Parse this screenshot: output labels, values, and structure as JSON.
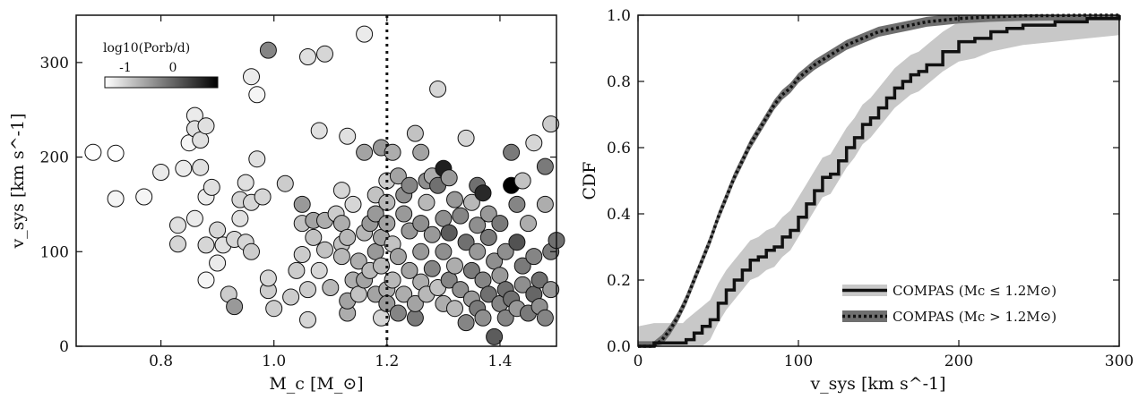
{
  "chart_data": [
    {
      "type": "scatter",
      "xlabel": "M_c [M_⊙]",
      "ylabel": "v_sys [km s^-1]",
      "xlim": [
        0.65,
        1.5
      ],
      "ylim": [
        0,
        350
      ],
      "xticks": [
        0.8,
        1.0,
        1.2,
        1.4
      ],
      "yticks": [
        0,
        100,
        200,
        300
      ],
      "xtick_labels": [
        "0.8",
        "1.0",
        "1.2",
        "1.4"
      ],
      "ytick_labels": [
        "0",
        "100",
        "200",
        "300"
      ],
      "vline_x": 1.2,
      "colorbar": {
        "label_text": "log10(Porb/d)",
        "range": [
          -1.6,
          0.9
        ],
        "ticks": [
          -1,
          0
        ],
        "tick_labels": [
          "-1",
          "0"
        ],
        "colors": [
          "#ffffff",
          "#000000"
        ]
      },
      "points": [
        [
          0.68,
          205,
          -1.6
        ],
        [
          0.72,
          204,
          -1.6
        ],
        [
          0.72,
          156,
          -1.5
        ],
        [
          0.77,
          158,
          -1.5
        ],
        [
          0.8,
          184,
          -1.4
        ],
        [
          0.83,
          128,
          -1.3
        ],
        [
          0.83,
          108,
          -1.2
        ],
        [
          0.84,
          188,
          -1.4
        ],
        [
          0.85,
          215,
          -1.5
        ],
        [
          0.86,
          244,
          -1.4
        ],
        [
          0.86,
          230,
          -1.3
        ],
        [
          0.87,
          218,
          -1.3
        ],
        [
          0.88,
          233,
          -1.3
        ],
        [
          0.87,
          189,
          -1.3
        ],
        [
          0.86,
          135,
          -1.4
        ],
        [
          0.88,
          158,
          -1.4
        ],
        [
          0.89,
          168,
          -1.3
        ],
        [
          0.88,
          107,
          -1.2
        ],
        [
          0.9,
          123,
          -1.2
        ],
        [
          0.88,
          70,
          -1.5
        ],
        [
          0.9,
          88,
          -1.4
        ],
        [
          0.91,
          107,
          -1.3
        ],
        [
          0.92,
          55,
          -1.1
        ],
        [
          0.93,
          42,
          -0.6
        ],
        [
          0.93,
          113,
          -1.2
        ],
        [
          0.94,
          135,
          -1.3
        ],
        [
          0.94,
          155,
          -1.2
        ],
        [
          0.95,
          173,
          -1.3
        ],
        [
          0.96,
          152,
          -1.2
        ],
        [
          0.96,
          285,
          -1.4
        ],
        [
          0.97,
          266,
          -1.5
        ],
        [
          0.97,
          198,
          -1.3
        ],
        [
          0.95,
          110,
          -1.2
        ],
        [
          0.96,
          100,
          -1.1
        ],
        [
          0.98,
          158,
          -1.2
        ],
        [
          0.99,
          59,
          -1.1
        ],
        [
          0.99,
          72,
          -1.2
        ],
        [
          1.0,
          40,
          -1.1
        ],
        [
          0.99,
          313,
          -0.4
        ],
        [
          1.02,
          172,
          -1.1
        ],
        [
          1.03,
          52,
          -1.1
        ],
        [
          1.04,
          80,
          -1.1
        ],
        [
          1.05,
          150,
          -0.6
        ],
        [
          1.05,
          130,
          -1.0
        ],
        [
          1.05,
          97,
          -1.1
        ],
        [
          1.06,
          28,
          -1.2
        ],
        [
          1.06,
          60,
          -1.1
        ],
        [
          1.06,
          306,
          -1.3
        ],
        [
          1.07,
          133,
          -0.7
        ],
        [
          1.07,
          115,
          -1.0
        ],
        [
          1.08,
          80,
          -1.2
        ],
        [
          1.08,
          228,
          -1.3
        ],
        [
          1.09,
          309,
          -1.2
        ],
        [
          1.09,
          133,
          -0.8
        ],
        [
          1.09,
          102,
          -1.0
        ],
        [
          1.1,
          62,
          -0.9
        ],
        [
          1.11,
          140,
          -1.1
        ],
        [
          1.12,
          165,
          -1.2
        ],
        [
          1.12,
          130,
          -0.8
        ],
        [
          1.12,
          108,
          -1.0
        ],
        [
          1.12,
          95,
          -0.9
        ],
        [
          1.13,
          35,
          -0.8
        ],
        [
          1.13,
          48,
          -0.7
        ],
        [
          1.13,
          222,
          -1.3
        ],
        [
          1.13,
          115,
          -0.9
        ],
        [
          1.14,
          150,
          -1.2
        ],
        [
          1.14,
          70,
          -0.8
        ],
        [
          1.15,
          55,
          -1.0
        ],
        [
          1.15,
          90,
          -0.8
        ],
        [
          1.16,
          330,
          -1.4
        ],
        [
          1.16,
          205,
          -0.7
        ],
        [
          1.16,
          120,
          -0.9
        ],
        [
          1.16,
          70,
          -0.7
        ],
        [
          1.17,
          130,
          -0.6
        ],
        [
          1.17,
          80,
          -0.9
        ],
        [
          1.18,
          55,
          -0.7
        ],
        [
          1.18,
          100,
          -0.6
        ],
        [
          1.18,
          140,
          -0.6
        ],
        [
          1.18,
          160,
          -1.0
        ],
        [
          1.19,
          30,
          -1.2
        ],
        [
          1.19,
          210,
          -0.6
        ],
        [
          1.19,
          115,
          -0.7
        ],
        [
          1.19,
          85,
          -0.9
        ],
        [
          1.2,
          60,
          -0.8
        ],
        [
          1.2,
          45,
          -0.6
        ],
        [
          1.2,
          175,
          -1.1
        ],
        [
          1.2,
          152,
          -0.9
        ],
        [
          1.2,
          130,
          -0.7
        ],
        [
          1.21,
          205,
          -0.8
        ],
        [
          1.21,
          108,
          -1.0
        ],
        [
          1.21,
          70,
          -0.9
        ],
        [
          1.22,
          180,
          -0.7
        ],
        [
          1.22,
          95,
          -0.7
        ],
        [
          1.22,
          35,
          -0.4
        ],
        [
          1.23,
          160,
          -0.5
        ],
        [
          1.23,
          140,
          -0.6
        ],
        [
          1.23,
          55,
          -0.8
        ],
        [
          1.24,
          122,
          -0.6
        ],
        [
          1.24,
          80,
          -0.7
        ],
        [
          1.24,
          170,
          -0.4
        ],
        [
          1.25,
          30,
          -0.3
        ],
        [
          1.25,
          225,
          -1.0
        ],
        [
          1.25,
          45,
          -0.7
        ],
        [
          1.26,
          205,
          -0.7
        ],
        [
          1.26,
          130,
          -0.5
        ],
        [
          1.26,
          100,
          -0.6
        ],
        [
          1.26,
          68,
          -0.8
        ],
        [
          1.27,
          175,
          -0.5
        ],
        [
          1.27,
          152,
          -0.9
        ],
        [
          1.27,
          55,
          -0.9
        ],
        [
          1.28,
          180,
          -0.8
        ],
        [
          1.28,
          118,
          -0.6
        ],
        [
          1.28,
          82,
          -0.4
        ],
        [
          1.29,
          170,
          -0.2
        ],
        [
          1.29,
          272,
          -1.2
        ],
        [
          1.29,
          62,
          -1.0
        ],
        [
          1.3,
          188,
          0.6
        ],
        [
          1.3,
          135,
          -0.5
        ],
        [
          1.3,
          100,
          -0.5
        ],
        [
          1.3,
          45,
          -0.8
        ],
        [
          1.31,
          178,
          -0.6
        ],
        [
          1.31,
          70,
          -0.4
        ],
        [
          1.31,
          120,
          0.0
        ],
        [
          1.32,
          155,
          -0.6
        ],
        [
          1.32,
          85,
          -0.8
        ],
        [
          1.32,
          40,
          -0.9
        ],
        [
          1.33,
          138,
          -0.4
        ],
        [
          1.33,
          60,
          -0.5
        ],
        [
          1.34,
          220,
          -1.2
        ],
        [
          1.34,
          110,
          -0.2
        ],
        [
          1.34,
          25,
          -0.4
        ],
        [
          1.35,
          152,
          -0.9
        ],
        [
          1.35,
          80,
          -0.3
        ],
        [
          1.35,
          50,
          -0.6
        ],
        [
          1.36,
          170,
          -0.2
        ],
        [
          1.36,
          128,
          -0.5
        ],
        [
          1.36,
          100,
          -0.6
        ],
        [
          1.36,
          40,
          -0.3
        ],
        [
          1.37,
          162,
          0.5
        ],
        [
          1.37,
          70,
          -0.4
        ],
        [
          1.37,
          30,
          -0.5
        ],
        [
          1.38,
          140,
          -0.6
        ],
        [
          1.38,
          115,
          -0.3
        ],
        [
          1.38,
          55,
          -0.2
        ],
        [
          1.39,
          10,
          0.0
        ],
        [
          1.39,
          90,
          -0.5
        ],
        [
          1.4,
          45,
          -0.4
        ],
        [
          1.4,
          130,
          -0.3
        ],
        [
          1.4,
          75,
          -0.6
        ],
        [
          1.41,
          60,
          -0.2
        ],
        [
          1.41,
          100,
          -0.5
        ],
        [
          1.41,
          30,
          -0.4
        ],
        [
          1.42,
          205,
          -0.3
        ],
        [
          1.42,
          170,
          0.9
        ],
        [
          1.42,
          50,
          -0.2
        ],
        [
          1.43,
          150,
          -0.4
        ],
        [
          1.43,
          110,
          0.1
        ],
        [
          1.43,
          40,
          -0.6
        ],
        [
          1.44,
          175,
          -1.0
        ],
        [
          1.44,
          85,
          -0.3
        ],
        [
          1.44,
          65,
          -0.5
        ],
        [
          1.45,
          130,
          -0.8
        ],
        [
          1.45,
          35,
          -0.3
        ],
        [
          1.46,
          215,
          -1.2
        ],
        [
          1.46,
          55,
          -0.1
        ],
        [
          1.46,
          95,
          -0.4
        ],
        [
          1.47,
          42,
          -0.5
        ],
        [
          1.47,
          70,
          -0.2
        ],
        [
          1.48,
          190,
          -0.3
        ],
        [
          1.48,
          150,
          -0.8
        ],
        [
          1.48,
          30,
          -0.4
        ],
        [
          1.49,
          60,
          -0.6
        ],
        [
          1.49,
          235,
          -1.1
        ],
        [
          1.49,
          100,
          -0.3
        ],
        [
          1.5,
          112,
          -0.2
        ]
      ]
    },
    {
      "type": "line",
      "xlabel": "v_sys [km s^-1]",
      "ylabel": "CDF",
      "xlim": [
        0,
        300
      ],
      "ylim": [
        0,
        1.0
      ],
      "xticks": [
        0,
        100,
        200,
        300
      ],
      "yticks": [
        0.0,
        0.2,
        0.4,
        0.6,
        0.8,
        1.0
      ],
      "xtick_labels": [
        "0",
        "100",
        "200",
        "300"
      ],
      "ytick_labels": [
        "0.0",
        "0.2",
        "0.4",
        "0.6",
        "0.8",
        "1.0"
      ],
      "legend_position": "bottom-right",
      "series": [
        {
          "name": "COMPAS (Mc ≤ 1.2M⊙)",
          "style": "solid",
          "band_color": "#c8c8c8",
          "band_halfwidth": 0.06,
          "x": [
            0,
            10,
            20,
            28,
            30,
            35,
            40,
            45,
            50,
            55,
            60,
            65,
            70,
            75,
            80,
            85,
            90,
            95,
            100,
            105,
            110,
            115,
            120,
            125,
            130,
            135,
            140,
            145,
            150,
            155,
            160,
            165,
            170,
            175,
            180,
            190,
            200,
            210,
            220,
            230,
            240,
            260,
            280,
            300
          ],
          "y": [
            0,
            0.01,
            0.01,
            0.01,
            0.02,
            0.04,
            0.06,
            0.08,
            0.13,
            0.17,
            0.2,
            0.23,
            0.26,
            0.27,
            0.29,
            0.3,
            0.33,
            0.35,
            0.39,
            0.43,
            0.47,
            0.51,
            0.52,
            0.56,
            0.6,
            0.63,
            0.67,
            0.69,
            0.72,
            0.75,
            0.78,
            0.8,
            0.82,
            0.83,
            0.85,
            0.89,
            0.92,
            0.93,
            0.95,
            0.96,
            0.97,
            0.98,
            0.99,
            1.0
          ]
        },
        {
          "name": "COMPAS (Mc > 1.2M⊙)",
          "style": "dotted",
          "band_color": "#6f6f6f",
          "band_halfwidth": 0.015,
          "x": [
            0,
            10,
            15,
            20,
            25,
            30,
            35,
            40,
            45,
            50,
            55,
            60,
            65,
            70,
            75,
            80,
            85,
            90,
            95,
            100,
            110,
            120,
            130,
            140,
            150,
            160,
            170,
            180,
            190,
            200,
            220,
            240,
            260,
            280,
            300
          ],
          "y": [
            0,
            0.0,
            0.02,
            0.05,
            0.09,
            0.14,
            0.2,
            0.26,
            0.32,
            0.39,
            0.45,
            0.51,
            0.56,
            0.61,
            0.65,
            0.69,
            0.73,
            0.76,
            0.78,
            0.81,
            0.85,
            0.88,
            0.91,
            0.93,
            0.95,
            0.96,
            0.97,
            0.98,
            0.985,
            0.99,
            0.995,
            0.998,
            0.999,
            1.0,
            1.0
          ]
        }
      ]
    }
  ]
}
